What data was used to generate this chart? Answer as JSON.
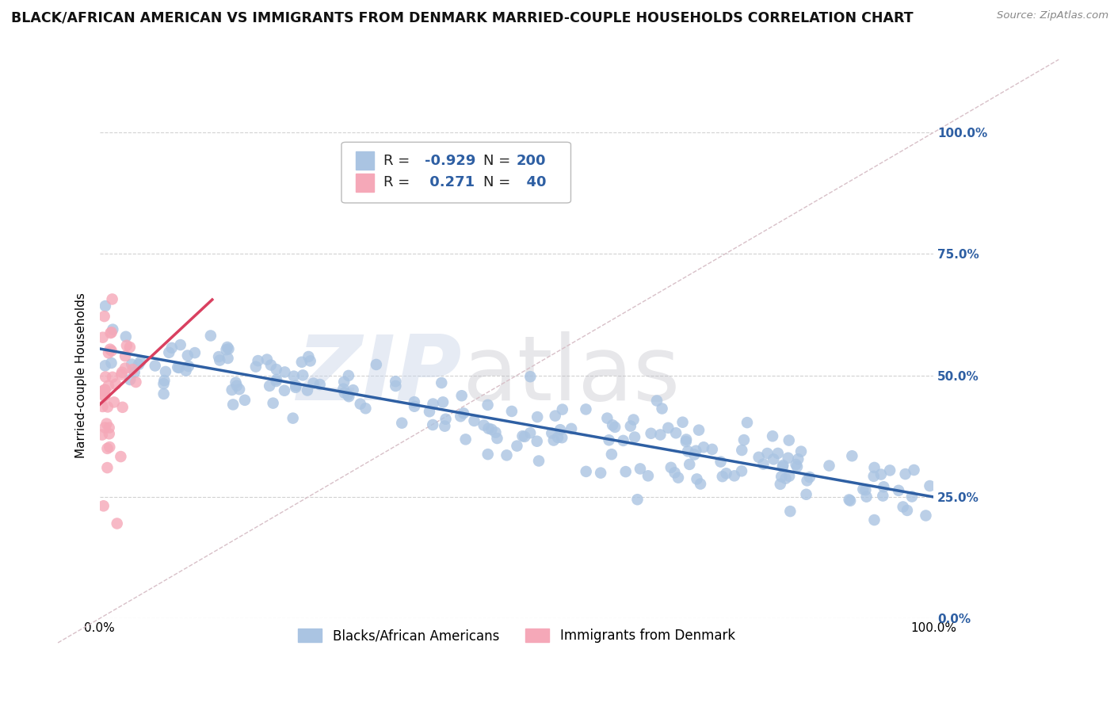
{
  "title": "BLACK/AFRICAN AMERICAN VS IMMIGRANTS FROM DENMARK MARRIED-COUPLE HOUSEHOLDS CORRELATION CHART",
  "source": "Source: ZipAtlas.com",
  "ylabel": "Married-couple Households",
  "background_color": "#ffffff",
  "legend_R1": "-0.929",
  "legend_N1": "200",
  "legend_R2": "0.271",
  "legend_N2": "40",
  "blue_color": "#aac4e2",
  "blue_line_color": "#2e5fa3",
  "pink_color": "#f5a8b8",
  "pink_line_color": "#d94060",
  "ytick_labels": [
    "0.0%",
    "25.0%",
    "50.0%",
    "75.0%",
    "100.0%"
  ],
  "ytick_values": [
    0.0,
    0.25,
    0.5,
    0.75,
    1.0
  ],
  "xmin": 0.0,
  "xmax": 1.0,
  "ymin": 0.0,
  "ymax": 1.0,
  "blue_intercept": 0.555,
  "blue_slope": -0.305,
  "pink_intercept": 0.44,
  "pink_slope": 1.6,
  "grid_color": "#cccccc",
  "title_fontsize": 12.5,
  "axis_label_fontsize": 11,
  "tick_fontsize": 11,
  "right_tick_color": "#2e5fa3",
  "legend_label1": "Blacks/African Americans",
  "legend_label2": "Immigrants from Denmark"
}
